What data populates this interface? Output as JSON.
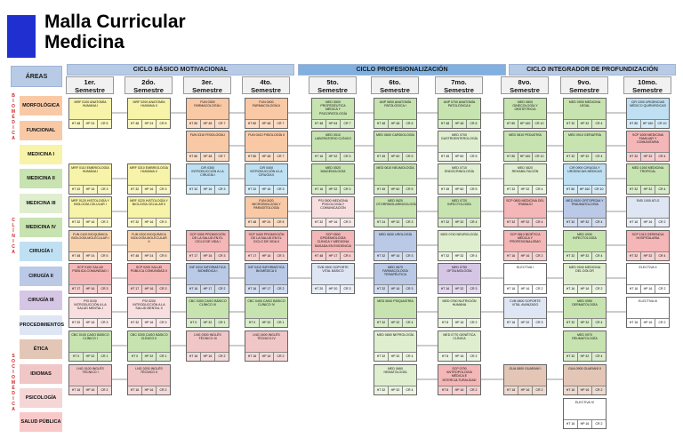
{
  "title": {
    "line1": "Malla Curricular",
    "line2": "Medicina"
  },
  "header": {
    "areas": "ÁREAS"
  },
  "cycles": [
    {
      "label": "CICLO BÁSICO MOTIVACIONAL"
    },
    {
      "label": "CICLO PROFESIONALIZACIÓN"
    },
    {
      "label": "CICLO INTEGRADOR DE PROFUNDIZACIÓN"
    }
  ],
  "semesters": [
    {
      "n": "1er.",
      "s": "Semestre"
    },
    {
      "n": "2do.",
      "s": "Semestre"
    },
    {
      "n": "3er.",
      "s": "Semestre"
    },
    {
      "n": "4to.",
      "s": "Semestre"
    },
    {
      "n": "5to.",
      "s": "Semestre"
    },
    {
      "n": "6to.",
      "s": "Semestre"
    },
    {
      "n": "7mo.",
      "s": "Semestre"
    },
    {
      "n": "8vo.",
      "s": "Semestre"
    },
    {
      "n": "9vo.",
      "s": "Semestre"
    },
    {
      "n": "10mo.",
      "s": "Semestre"
    }
  ],
  "groups": {
    "biomedica": "BIOMÉDICA",
    "clinica": "CLÍNICA",
    "sociomedica": "SOCIOMÉDICA"
  },
  "areas": [
    {
      "label": "MORFOLÓGICA",
      "color": "#f9c9a6"
    },
    {
      "label": "FUNCIONAL",
      "color": "#f9c9a6"
    },
    {
      "label": "MEDICINA I",
      "color": "#f7f3a8"
    },
    {
      "label": "MEDICINA II",
      "color": "#c7e3b0"
    },
    {
      "label": "MEDICINA III",
      "color": "#dfeecf"
    },
    {
      "label": "MEDICINA IV",
      "color": "#c7e3b0"
    },
    {
      "label": "CIRUGÍA I",
      "color": "#bfe0f2"
    },
    {
      "label": "CIRUGÍA II",
      "color": "#b9c9e6"
    },
    {
      "label": "CIRUGÍA III",
      "color": "#d6c6e6"
    },
    {
      "label": "PROCEDIMIENTOS",
      "color": "#dfe6f3"
    },
    {
      "label": "ÉTICA",
      "color": "#e4c6b6"
    },
    {
      "label": "IDIOMAS",
      "color": "#f0c6c6"
    },
    {
      "label": "PSICOLOGÍA",
      "color": "#f5d6d6"
    },
    {
      "label": "SALUD PÚBLICA",
      "color": "#f9c9c9"
    }
  ],
  "courses": [
    {
      "col": 0,
      "row": 0,
      "name": "MRF 0100 ANATOMÍA HUMANA I",
      "color": "#f7f3a8",
      "c": [
        "HT 48",
        "HP 24",
        "CR 5"
      ]
    },
    {
      "col": 0,
      "row": 2,
      "name": "MRF 0110 EMBRIOLOGÍA HUMANA I",
      "color": "#f7f3a8",
      "c": [
        "HT 32",
        "HP 16",
        "CR 3"
      ]
    },
    {
      "col": 0,
      "row": 3,
      "name": "MRF 0120 HISTOLOGÍA Y BIOLOGÍA CELULAR I",
      "color": "#f7f3a8",
      "c": [
        "HT 32",
        "HP 16",
        "CR 3"
      ]
    },
    {
      "col": 0,
      "row": 4,
      "name": "FUN 0100 BIOQUÍMICA BIOLOGÍA MOLECULAR I",
      "color": "#f9d3b0",
      "c": [
        "HT 48",
        "HP 24",
        "CR 5"
      ]
    },
    {
      "col": 0,
      "row": 5,
      "name": "SCP 0100 SALUD PÚBLICA COMUNIDAD I",
      "color": "#f4b6b6",
      "c": [
        "HT 17",
        "HP 16",
        "CR 3"
      ]
    },
    {
      "col": 0,
      "row": 6,
      "name": "PSI 0100 INTRODUCCIÓN A LA SALUD MENTAL I",
      "color": "#f8dede",
      "c": [
        "HT 32",
        "HP 16",
        "CR 3"
      ]
    },
    {
      "col": 0,
      "row": 7,
      "name": "CBC 0100 CASO BÁSICO CLÍNICO I",
      "color": "#c7e3b0",
      "c": [
        "HT 0",
        "HP 32",
        "CR 1"
      ]
    },
    {
      "col": 0,
      "row": 8,
      "name": "LNG 0100 INGLÉS TÉCNICO I",
      "color": "#f0c6c6",
      "c": [
        "HT 16",
        "HP 16",
        "CR 2"
      ]
    },
    {
      "col": 1,
      "row": 0,
      "name": "MRF 0200 ANATOMÍA HUMANA II",
      "color": "#f7f3a8",
      "c": [
        "HT 48",
        "HP 24",
        "CR 5"
      ]
    },
    {
      "col": 1,
      "row": 2,
      "name": "MRF 0210 EMBRIOLOGÍA HUMANA II",
      "color": "#f7f3a8",
      "c": [
        "HT 32",
        "HP 16",
        "CR 3"
      ]
    },
    {
      "col": 1,
      "row": 3,
      "name": "MRF 0220 HISTOLOGÍA Y BIOLOGÍA CELULAR II",
      "color": "#f7f3a8",
      "c": [
        "HT 32",
        "HP 16",
        "CR 3"
      ]
    },
    {
      "col": 1,
      "row": 4,
      "name": "FUN 0200 BIOQUÍMICA BIOLOGÍA MOLECULAR II",
      "color": "#f9d3b0",
      "c": [
        "HT 48",
        "HP 24",
        "CR 5"
      ]
    },
    {
      "col": 1,
      "row": 5,
      "name": "SCP 0200 SALUD PÚBLICA COMUNIDAD II",
      "color": "#f4b6b6",
      "c": [
        "HT 17",
        "HP 16",
        "CR 3"
      ]
    },
    {
      "col": 1,
      "row": 6,
      "name": "PSI 0200 INTRODUCCIÓN A LA SALUD MENTAL II",
      "color": "#f8dede",
      "c": [
        "HT 32",
        "HP 16",
        "CR 3"
      ]
    },
    {
      "col": 1,
      "row": 7,
      "name": "CBC 0200 CASO BÁSICO CLÍNICO II",
      "color": "#c7e3b0",
      "c": [
        "HT 0",
        "HP 32",
        "CR 1"
      ]
    },
    {
      "col": 1,
      "row": 8,
      "name": "LNG 0200 INGLÉS TÉCNICO II",
      "color": "#f0c6c6",
      "c": [
        "HT 16",
        "HP 16",
        "CR 2"
      ]
    },
    {
      "col": 2,
      "row": 0,
      "name": "FUN 0300 FARMACOLOGÍA I",
      "color": "#f9c9a6",
      "c": [
        "HT 80",
        "HP 48",
        "CR 7"
      ]
    },
    {
      "col": 2,
      "row": 1,
      "name": "FUN 0310 FISIOLOGÍA I",
      "color": "#f9c9a6",
      "c": [
        "HT 80",
        "HP 48",
        "CR 7"
      ]
    },
    {
      "col": 2,
      "row": 2,
      "name": "CIR 0300 INTRODUCCIÓN A LA CIRUGÍA I",
      "color": "#bfe0f2",
      "c": [
        "HT 32",
        "HP 16",
        "CR 3"
      ]
    },
    {
      "col": 2,
      "row": 4,
      "name": "SCP 0300 PROMOCIÓN DE LA SALUD EN EL CICLO DE VIDA I",
      "color": "#f4b6b6",
      "c": [
        "HT 17",
        "HP 16",
        "CR 3"
      ]
    },
    {
      "col": 2,
      "row": 5,
      "name": "INF 0310 INFORMÁTICA BIOMÉDICA I",
      "color": "#b9c9e6",
      "c": [
        "HT 16",
        "HP 17",
        "CR 2"
      ]
    },
    {
      "col": 2,
      "row": 6,
      "name": "CBC 0300 CASO BÁSICO CLÍNICO III",
      "color": "#c7e3b0",
      "c": [
        "HT 0",
        "HP 32",
        "CR 1"
      ]
    },
    {
      "col": 2,
      "row": 7,
      "name": "LNG 0300 INGLÉS TÉCNICO III",
      "color": "#f0c6c6",
      "c": [
        "HT 16",
        "HP 16",
        "CR 2"
      ]
    },
    {
      "col": 3,
      "row": 0,
      "name": "FUN 0400 FARMACOLOGÍA II",
      "color": "#f9c9a6",
      "c": [
        "HT 80",
        "HP 48",
        "CR 7"
      ]
    },
    {
      "col": 3,
      "row": 1,
      "name": "FUN 0410 FISIOLOGÍA II",
      "color": "#f9c9a6",
      "c": [
        "HT 80",
        "HP 48",
        "CR 7"
      ]
    },
    {
      "col": 3,
      "row": 2,
      "name": "CIR 0400 INTRODUCCIÓN A LA CIRUGÍA II",
      "color": "#bfe0f2",
      "c": [
        "HT 32",
        "HP 16",
        "CR 3"
      ]
    },
    {
      "col": 3,
      "row": 3,
      "name": "FUN 0420 MICROBIOLOGÍA Y PARASITOLOGÍA",
      "color": "#f9c9a6",
      "c": [
        "HT 48",
        "HP 24",
        "CR 5"
      ]
    },
    {
      "col": 3,
      "row": 4,
      "name": "SCP 0400 PROMOCIÓN DE LA SALUD EN EL CICLO DE VIDA II",
      "color": "#f4b6b6",
      "c": [
        "HT 17",
        "HP 16",
        "CR 3"
      ]
    },
    {
      "col": 3,
      "row": 5,
      "name": "INF 0410 INFORMÁTICA BIOMÉDICA II",
      "color": "#b9c9e6",
      "c": [
        "HT 16",
        "HP 17",
        "CR 2"
      ]
    },
    {
      "col": 3,
      "row": 6,
      "name": "CBC 0400 CASO BÁSICO CLÍNICO IV",
      "color": "#c7e3b0",
      "c": [
        "HT 0",
        "HP 32",
        "CR 1"
      ]
    },
    {
      "col": 3,
      "row": 7,
      "name": "LNG 0400 INGLÉS TÉCNICO IV",
      "color": "#f0c6c6",
      "c": [
        "HT 16",
        "HP 16",
        "CR 2"
      ]
    },
    {
      "col": 4,
      "row": 0,
      "name": "MED 0500 PROPEDÉUTICA MÉDICA Y PSICOPATOLOGÍA",
      "color": "#c7e3b0",
      "c": [
        "HT 48",
        "HP 64",
        "CR 7"
      ]
    },
    {
      "col": 4,
      "row": 1,
      "name": "MED 0510 LABORATORIO CLÍNICO",
      "color": "#c7e3b0",
      "c": [
        "HT 16",
        "HP 32",
        "CR 3"
      ]
    },
    {
      "col": 4,
      "row": 2,
      "name": "MED 0520 IMAGENOLOGÍA",
      "color": "#c7e3b0",
      "c": [
        "HT 16",
        "HP 32",
        "CR 3"
      ]
    },
    {
      "col": 4,
      "row": 3,
      "name": "PSI 0500 MEDICINA PSICOLOGÍA Y COMUNICACIÓN",
      "color": "#f8dede",
      "c": [
        "HT 32",
        "HP 16",
        "CR 3"
      ]
    },
    {
      "col": 4,
      "row": 4,
      "name": "SCP 0500 EPIDEMIOLOGÍA CLÍNICA Y MEDICINA BASADA EN EVIDENCIA",
      "color": "#f4b6b6",
      "c": [
        "HT 48",
        "HP 17",
        "CR 4"
      ]
    },
    {
      "col": 4,
      "row": 5,
      "name": "SVB 0500 SOPORTE VITAL BÁSICO",
      "color": "#dfe6f3",
      "c": [
        "HT 20",
        "HP 20",
        "CR 3"
      ]
    },
    {
      "col": 5,
      "row": 0,
      "name": "ANP 0600 ANATOMÍA PATOLÓGICA I",
      "color": "#c7e3b0",
      "c": [
        "HT 48",
        "HP 48",
        "CR 6"
      ]
    },
    {
      "col": 5,
      "row": 1,
      "name": "MED 0600 CARDIOLOGÍA",
      "color": "#c7e3b0",
      "c": [
        "HT 45",
        "HP 60",
        "CR 5"
      ]
    },
    {
      "col": 5,
      "row": 2,
      "name": "MED 0610 NEUMOLOGÍA",
      "color": "#c7e3b0",
      "c": [
        "HT 45",
        "HP 60",
        "CR 5"
      ]
    },
    {
      "col": 5,
      "row": 3,
      "name": "MED 0620 OTORRINOLARINGOLOGÍA",
      "color": "#c7e3b0",
      "c": [
        "HT 24",
        "HP 32",
        "CR 3"
      ]
    },
    {
      "col": 5,
      "row": 4,
      "name": "MED 0630 UROLOGÍA",
      "color": "#b9c9e6",
      "c": [
        "HT 32",
        "HP 16",
        "CR 3"
      ]
    },
    {
      "col": 5,
      "row": 5,
      "name": "MED 0670 FARMACOLOGÍA TERAPÉUTICA",
      "color": "#b9c9e6",
      "c": [
        "HT 32",
        "HP 16",
        "CR 3"
      ]
    },
    {
      "col": 5,
      "row": 6,
      "name": "MED 0640 PSIQUIATRÍA",
      "color": "#c7e3b0",
      "c": [
        "HT 32",
        "HP 32",
        "CR 4"
      ]
    },
    {
      "col": 5,
      "row": 7,
      "name": "MED 0650 NEFROLOGÍA",
      "color": "#dfeecf",
      "c": [
        "HT 32",
        "HP 32",
        "CR 4"
      ]
    },
    {
      "col": 5,
      "row": 8,
      "name": "MED 0660 HEMATOLOGÍA",
      "color": "#dfeecf",
      "c": [
        "HT 32",
        "HP 32",
        "CR 4"
      ]
    },
    {
      "col": 6,
      "row": 0,
      "name": "ANP 0700 ANATOMÍA PATOLÓGICA II",
      "color": "#c7e3b0",
      "c": [
        "HT 48",
        "HP 48",
        "CR 6"
      ]
    },
    {
      "col": 6,
      "row": 1,
      "name": "MED 0700 GASTROENTEROLOGÍA",
      "color": "#dfeecf",
      "c": [
        "HT 45",
        "HP 60",
        "CR 5"
      ]
    },
    {
      "col": 6,
      "row": 2,
      "name": "MED 0710 ENDOCRINOLOGÍA",
      "color": "#dfeecf",
      "c": [
        "HT 45",
        "HP 60",
        "CR 5"
      ]
    },
    {
      "col": 6,
      "row": 3,
      "name": "MED 0720 INFECTOLOGÍA",
      "color": "#c7e3b0",
      "c": [
        "HT 32",
        "HP 32",
        "CR 4"
      ]
    },
    {
      "col": 6,
      "row": 4,
      "name": "MED 0740 NEUROLOGÍA",
      "color": "#dfeecf",
      "c": [
        "HT 32",
        "HP 32",
        "CR 4"
      ]
    },
    {
      "col": 6,
      "row": 5,
      "name": "MED 0750 OFTALMOLOGÍA",
      "color": "#d6c6e6",
      "c": [
        "HT 16",
        "HP 32",
        "CR 3"
      ]
    },
    {
      "col": 6,
      "row": 6,
      "name": "MED 0760 NUTRICIÓN HUMANA",
      "color": "#dfeecf",
      "c": [
        "HT 8",
        "HP 16",
        "CR 2"
      ]
    },
    {
      "col": 6,
      "row": 7,
      "name": "MED 0770 GENÉTICA CLÍNICA",
      "color": "#dfeecf",
      "c": [
        "HT 8",
        "HP 16",
        "CR 2"
      ]
    },
    {
      "col": 6,
      "row": 8,
      "name": "SCP 0700 ANTROPOLOGÍA MÉDICA E INTERCULTURALIDAD",
      "color": "#f4b6b6",
      "c": [
        "HT 8",
        "HP 16",
        "CR 2"
      ]
    },
    {
      "col": 7,
      "row": 0,
      "name": "MED 0800 GINECOLOGÍA Y OBSTETRICIA",
      "color": "#c7e3b0",
      "c": [
        "HT 80",
        "HP 160",
        "CR 10"
      ]
    },
    {
      "col": 7,
      "row": 1,
      "name": "MED 0810 PEDIATRÍA",
      "color": "#c7e3b0",
      "c": [
        "HT 80",
        "HP 160",
        "CR 10"
      ]
    },
    {
      "col": 7,
      "row": 2,
      "name": "MED 0820 REHABILITACIÓN",
      "color": "#dfeecf",
      "c": [
        "HT 32",
        "HP 32",
        "CR 4"
      ]
    },
    {
      "col": 7,
      "row": 3,
      "name": "SCP 0800 MEDICINA DEL TRABAJO",
      "color": "#f4b6b6",
      "c": [
        "HT 32",
        "HP 32",
        "CR 4"
      ]
    },
    {
      "col": 7,
      "row": 4,
      "name": "SCP 0810 BIOÉTICA MÉDICA Y PROFESIONALISMO",
      "color": "#f4b6b6",
      "c": [
        "HT 16",
        "HP 16",
        "CR 2"
      ]
    },
    {
      "col": 7,
      "row": 5,
      "name": "ELECTIVA I",
      "color": "#ffffff",
      "c": [
        "HT 16",
        "HP 16",
        "CR 2"
      ]
    },
    {
      "col": 7,
      "row": 6,
      "name": "CVB 0800 SOPORTE VITAL AVANZADO",
      "color": "#dfe6f3",
      "c": [
        "HT 16",
        "HP 32",
        "CR 3"
      ]
    },
    {
      "col": 7,
      "row": 8,
      "name": "GUA 0800 GUARANÍ I",
      "color": "#e4c6b6",
      "c": [
        "HT 16",
        "HP 16",
        "CR 2"
      ]
    },
    {
      "col": 8,
      "row": 0,
      "name": "MED 0900 MEDICINA LEGAL",
      "color": "#c7e3b0",
      "c": [
        "HT 32",
        "HP 32",
        "CR 4"
      ]
    },
    {
      "col": 8,
      "row": 1,
      "name": "MED 0910 GERIATRÍA",
      "color": "#c7e3b0",
      "c": [
        "HT 32",
        "HP 32",
        "CR 4"
      ]
    },
    {
      "col": 8,
      "row": 2,
      "name": "CIR 0900 CIRUGÍA Y URGENCIAS MÉDICAS",
      "color": "#bfe0f2",
      "c": [
        "HT 80",
        "HP 160",
        "CR 10"
      ]
    },
    {
      "col": 8,
      "row": 3,
      "name": "MED 0920 ORTOPEDIA Y TRAUMATOLOGÍA",
      "color": "#b9c9e6",
      "c": [
        "HT 32",
        "HP 32",
        "CR 4"
      ]
    },
    {
      "col": 8,
      "row": 4,
      "name": "MED 0930 INFECTOLOGÍA",
      "color": "#c7e3b0",
      "c": [
        "HT 32",
        "HP 32",
        "CR 4"
      ]
    },
    {
      "col": 8,
      "row": 5,
      "name": "MED 0940 MEDICINA DEL DOLOR",
      "color": "#dfeecf",
      "c": [
        "HT 16",
        "HP 16",
        "CR 2"
      ]
    },
    {
      "col": 8,
      "row": 6,
      "name": "MED 0950 DERMATOLOGÍA",
      "color": "#c7e3b0",
      "c": [
        "HT 32",
        "HP 32",
        "CR 4"
      ]
    },
    {
      "col": 8,
      "row": 7,
      "name": "MED 0970 REUMATOLOGÍA",
      "color": "#c7e3b0",
      "c": [
        "HT 32",
        "HP 32",
        "CR 4"
      ]
    },
    {
      "col": 8,
      "row": 8,
      "name": "GUA 0900 GUARANÍ II",
      "color": "#e4c6b6",
      "c": [
        "HT 16",
        "HP 16",
        "CR 2"
      ]
    },
    {
      "col": 9,
      "row": 0,
      "name": "CIR 1000 URGENCIAS MÉDICO QUIRÚRGICAS",
      "color": "#bfe0f2",
      "c": [
        "HT 80",
        "HP 160",
        "CR 10"
      ]
    },
    {
      "col": 9,
      "row": 1,
      "name": "SCP 1000 MEDICINA FAMILIAR Y COMUNITARIA",
      "color": "#f4b6b6",
      "c": [
        "HT 32",
        "HP 32",
        "CR 4"
      ]
    },
    {
      "col": 9,
      "row": 2,
      "name": "MED 1000 MEDICINA TROPICAL",
      "color": "#c7e3b0",
      "c": [
        "HT 32",
        "HP 32",
        "CR 4"
      ]
    },
    {
      "col": 9,
      "row": 3,
      "name": "SVB 1000 ATLS",
      "color": "#dfe6f3",
      "c": [
        "HT 16",
        "HP 16",
        "CR 2"
      ]
    },
    {
      "col": 9,
      "row": 4,
      "name": "SCP 1010 GERENCIA HOSPITALARIA",
      "color": "#f4b6b6",
      "c": [
        "HT 32",
        "HP 32",
        "CR 4"
      ]
    },
    {
      "col": 9,
      "row": 5,
      "name": "ELECTIVA II",
      "color": "#ffffff",
      "c": [
        "HT 16",
        "HP 16",
        "CR 2"
      ]
    },
    {
      "col": 9,
      "row": 6,
      "name": "ELECTIVA III",
      "color": "#ffffff",
      "c": [
        "HT 16",
        "HP 16",
        "CR 2"
      ]
    }
  ],
  "extra": {
    "name": "ELECTIVA IV",
    "color": "#ffffff",
    "c": [
      "HT 16",
      "HP 16",
      "CR 2"
    ]
  }
}
